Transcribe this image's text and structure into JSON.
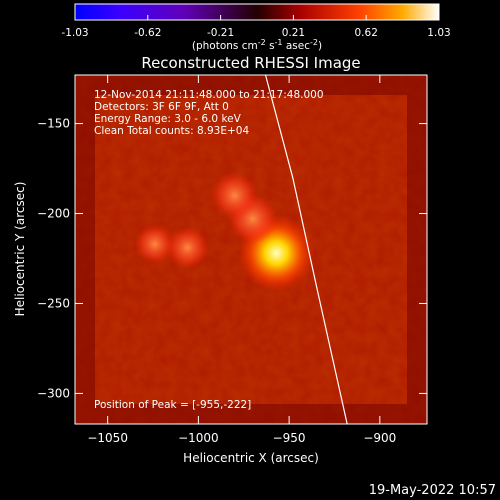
{
  "colorbar": {
    "ticks": [
      "-1.03",
      "-0.62",
      "-0.21",
      "0.21",
      "0.62",
      "1.03"
    ],
    "unit_main": "(photons cm",
    "unit_sup1": "-2",
    "unit_mid": " s",
    "unit_sup2": "-1",
    "unit_mid2": " asec",
    "unit_sup3": "-2",
    "unit_end": ")"
  },
  "title": "Reconstructed RHESSI Image",
  "info": {
    "line1": "12-Nov-2014 21:11:48.000 to 21:17:48.000",
    "line2": "Detectors: 3F 6F 9F, Att 0",
    "line3": "Energy Range: 3.0 - 6.0 keV",
    "line4": "Clean    Total counts: 8.93E+04"
  },
  "peak_label": "Position of Peak = [-955,-222]",
  "axes": {
    "xlabel": "Heliocentric X (arcsec)",
    "ylabel": "Heliocentric Y (arcsec)",
    "xlim": [
      -1068,
      -874
    ],
    "ylim": [
      -317,
      -123
    ],
    "xticks": [
      -1050,
      -1000,
      -950,
      -900
    ],
    "yticks": [
      -150,
      -200,
      -250,
      -300
    ]
  },
  "sources": [
    {
      "x": -957,
      "y": -222,
      "intensity": 1.0
    },
    {
      "x": -970,
      "y": -203,
      "intensity": 0.45
    },
    {
      "x": -980,
      "y": -190,
      "intensity": 0.4
    },
    {
      "x": -1006,
      "y": -219,
      "intensity": 0.3
    },
    {
      "x": -1024,
      "y": -217,
      "intensity": 0.25
    }
  ],
  "limb": [
    {
      "x": -963,
      "y": -123
    },
    {
      "x": -948,
      "y": -180
    },
    {
      "x": -935,
      "y": -240
    },
    {
      "x": -918,
      "y": -317
    }
  ],
  "timestamp": "19-May-2022 10:57",
  "colors": {
    "limb": "#ffffff",
    "background": "#000000"
  }
}
